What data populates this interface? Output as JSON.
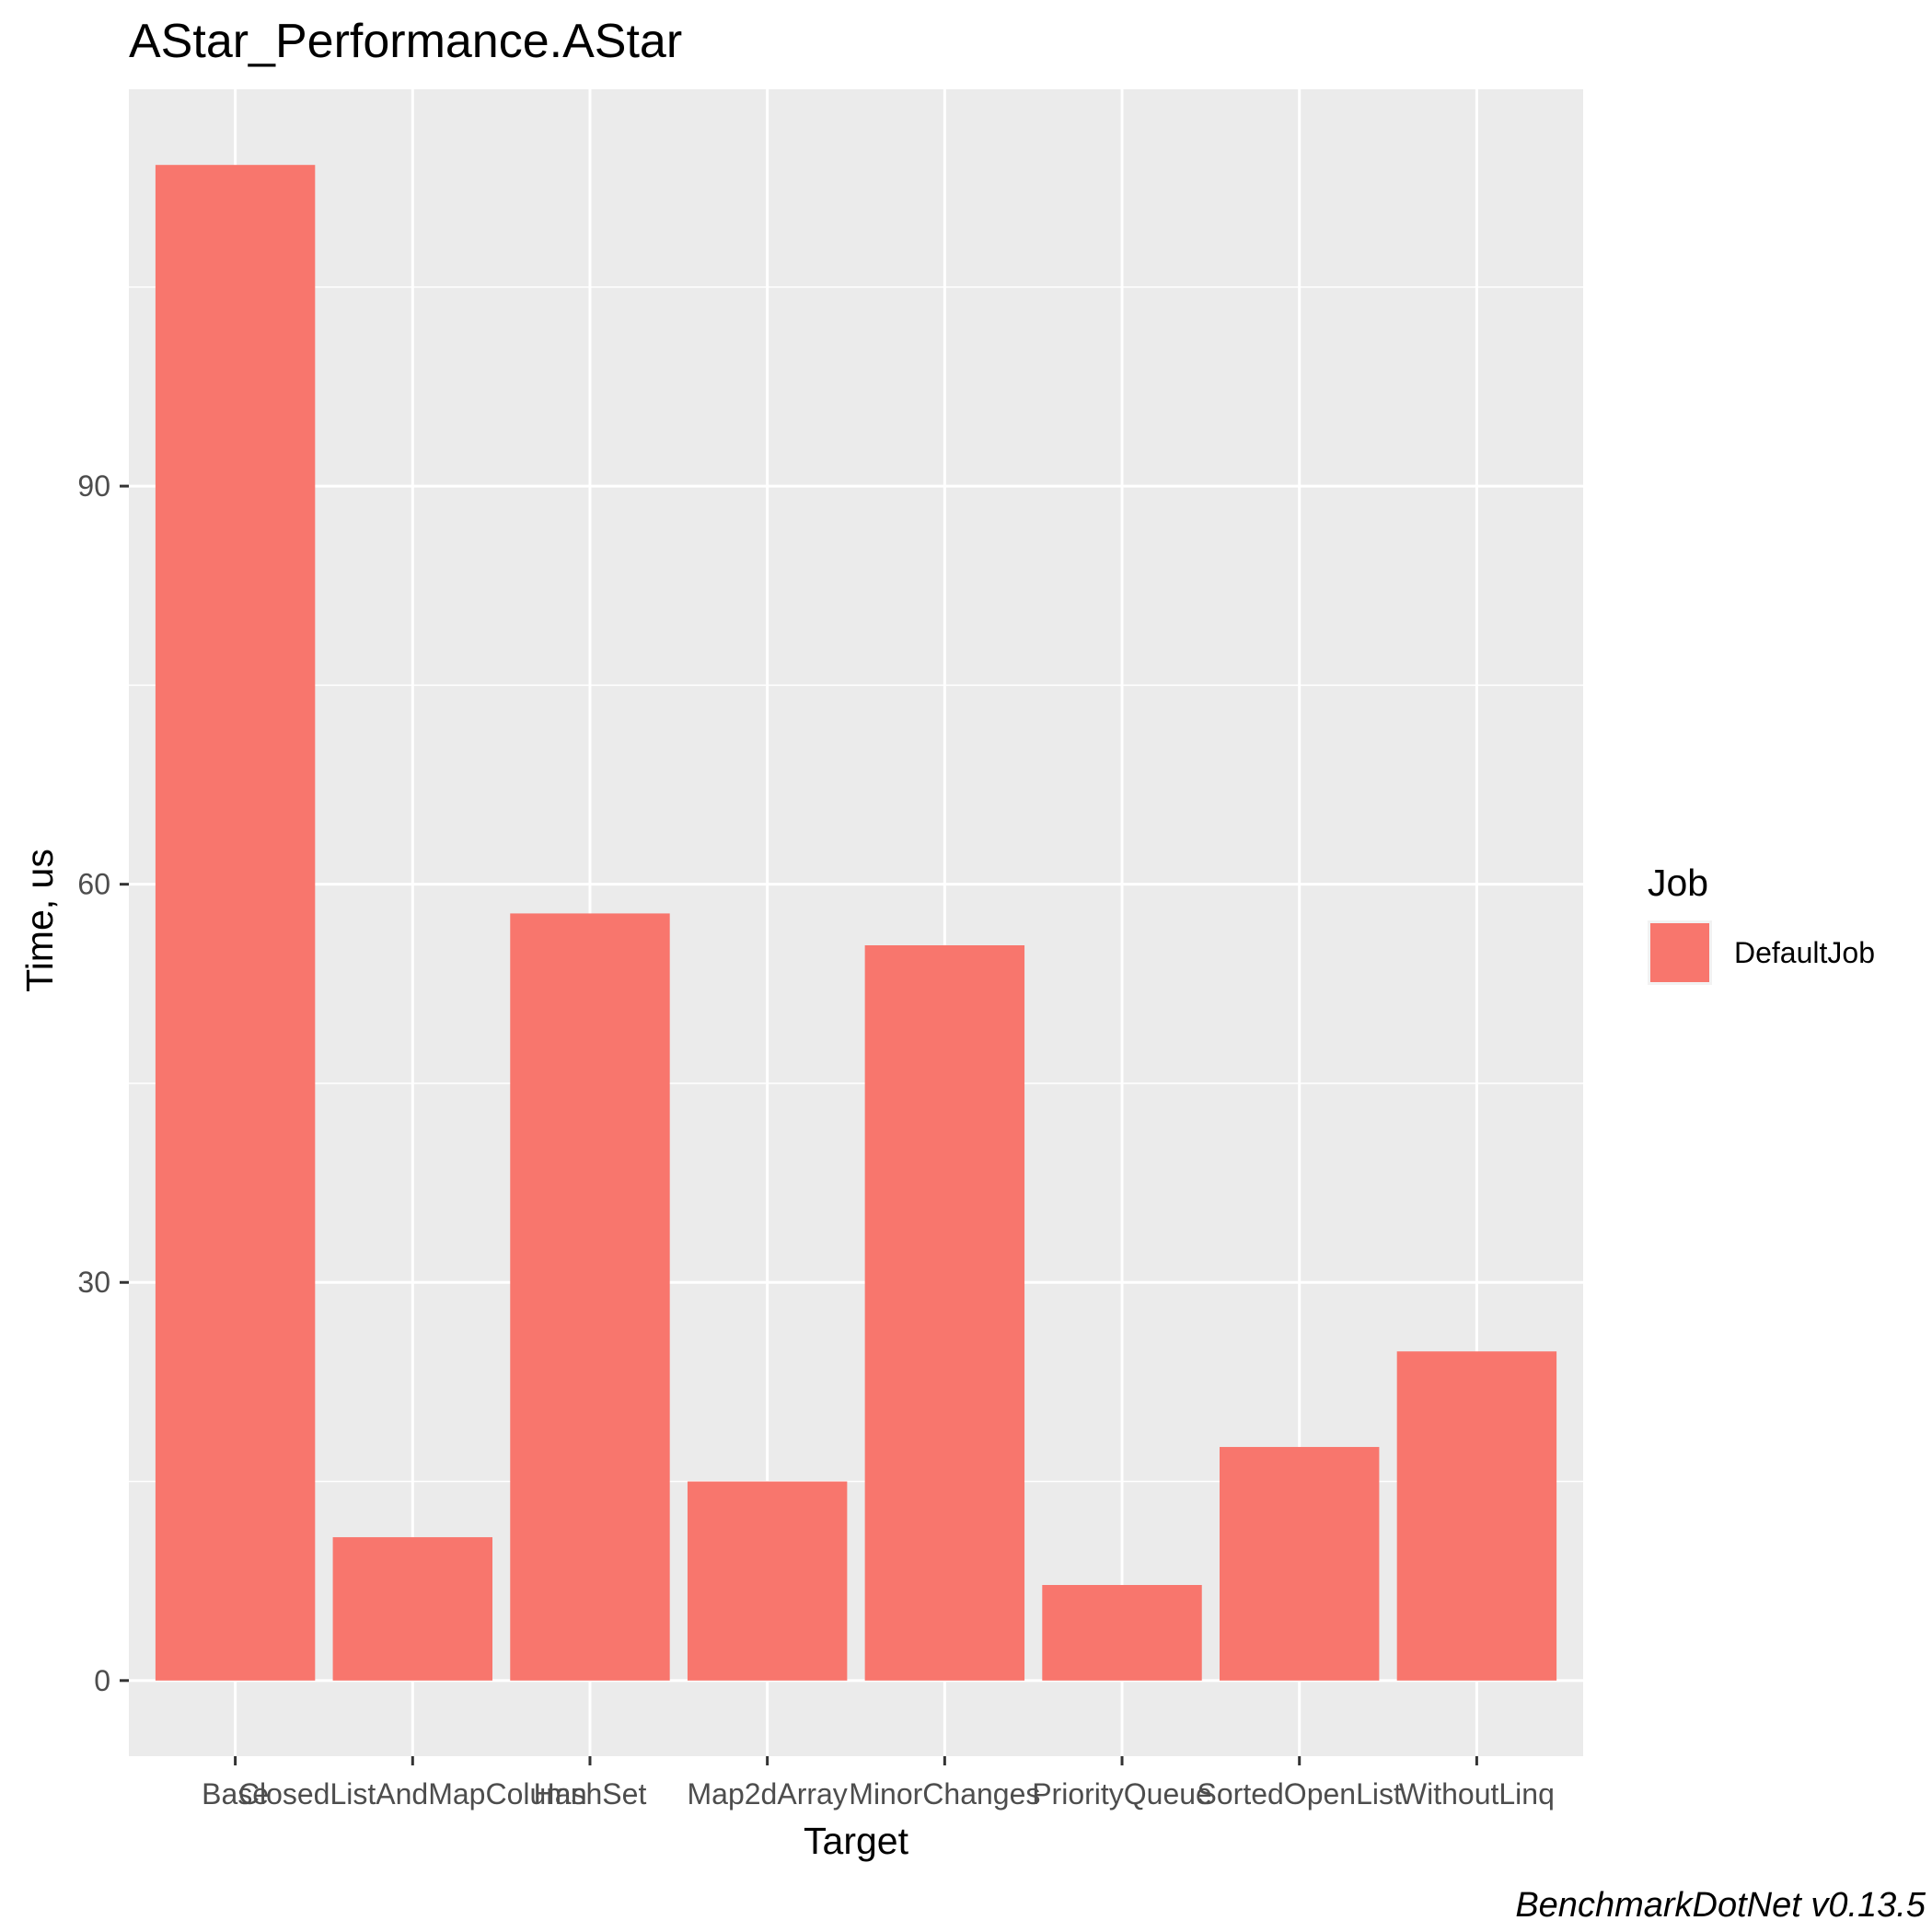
{
  "chart_data": {
    "type": "bar",
    "title": "AStar_Performance.AStar",
    "xlabel": "Target",
    "ylabel": "Time, us",
    "categories": [
      "Base",
      "ClosedListAndMapColumn",
      "HashSet",
      "Map2dArray",
      "MinorChanges",
      "PriorityQueue",
      "SortedOpenList",
      "WithoutLinq"
    ],
    "series": [
      {
        "name": "DefaultJob",
        "color": "#F8766D",
        "values": [
          114.2,
          10.8,
          57.8,
          15.0,
          55.4,
          7.2,
          17.6,
          24.8
        ]
      }
    ],
    "ylim": [
      -5.7,
      119.9
    ],
    "yticks": [
      0,
      30,
      60,
      90
    ],
    "grid": true,
    "legend": {
      "title": "Job",
      "position": "right"
    },
    "caption": "BenchmarkDotNet v0.13.5",
    "panel_background": "#EBEBEB",
    "grid_color": "#FFFFFF"
  }
}
